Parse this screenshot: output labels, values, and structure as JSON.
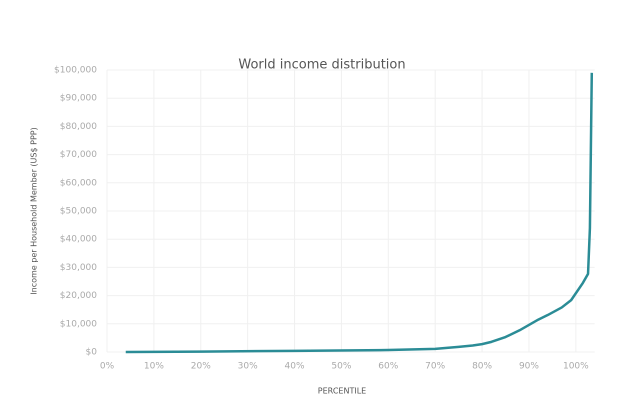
{
  "chart_data": {
    "type": "line",
    "title": "World income distribution",
    "x_label": "PERCENTILE",
    "y_label": "Income per Household Member (US$ PPP)",
    "x": [
      4,
      20,
      40,
      60,
      70,
      75,
      78,
      80,
      82,
      85,
      88,
      90,
      92,
      94,
      97,
      99,
      101.5,
      102.6,
      103,
      103.4
    ],
    "series": [
      {
        "name": "Income",
        "color": "#2b8c96",
        "values": [
          0,
          150,
          400,
          700,
          1100,
          1800,
          2300,
          2800,
          3600,
          5300,
          7700,
          9600,
          11500,
          13100,
          15800,
          18400,
          24500,
          27700,
          44000,
          99000
        ]
      }
    ],
    "xlim": [
      0,
      104
    ],
    "ylim": [
      0,
      100000
    ],
    "xticks": [
      {
        "value": 0,
        "label": "0%"
      },
      {
        "value": 10,
        "label": "10%"
      },
      {
        "value": 20,
        "label": "20%"
      },
      {
        "value": 30,
        "label": "30%"
      },
      {
        "value": 40,
        "label": "40%"
      },
      {
        "value": 50,
        "label": "50%"
      },
      {
        "value": 60,
        "label": "60%"
      },
      {
        "value": 70,
        "label": "70%"
      },
      {
        "value": 80,
        "label": "80%"
      },
      {
        "value": 90,
        "label": "90%"
      },
      {
        "value": 100,
        "label": "100%"
      }
    ],
    "yticks": [
      {
        "value": 0,
        "label": "$0"
      },
      {
        "value": 10000,
        "label": "$10,000"
      },
      {
        "value": 20000,
        "label": "$20,000"
      },
      {
        "value": 30000,
        "label": "$30,000"
      },
      {
        "value": 40000,
        "label": "$40,000"
      },
      {
        "value": 50000,
        "label": "$50,000"
      },
      {
        "value": 60000,
        "label": "$60,000"
      },
      {
        "value": 70000,
        "label": "$70,000"
      },
      {
        "value": 80000,
        "label": "$80,000"
      },
      {
        "value": 90000,
        "label": "$90,000"
      },
      {
        "value": 100000,
        "label": "$100,000"
      }
    ],
    "grid": true
  }
}
